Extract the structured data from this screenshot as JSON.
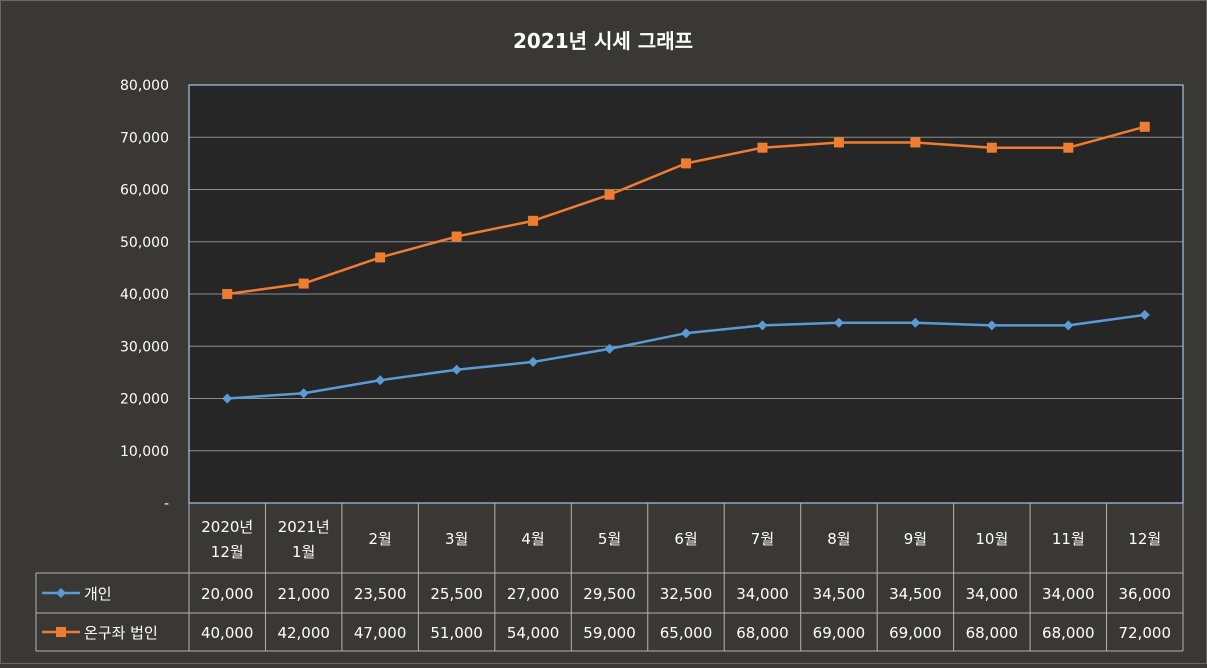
{
  "chart_data": {
    "type": "line",
    "title": "2021년 시세 그래프",
    "categories": [
      [
        "2020년",
        "12월"
      ],
      [
        "2021년",
        "1월"
      ],
      [
        "2월"
      ],
      [
        "3월"
      ],
      [
        "4월"
      ],
      [
        "5월"
      ],
      [
        "6월"
      ],
      [
        "7월"
      ],
      [
        "8월"
      ],
      [
        "9월"
      ],
      [
        "10월"
      ],
      [
        "11월"
      ],
      [
        "12월"
      ]
    ],
    "ylim": [
      0,
      80000
    ],
    "yticks": [
      "-",
      "10,000",
      "20,000",
      "30,000",
      "40,000",
      "50,000",
      "60,000",
      "70,000",
      "80,000"
    ],
    "grid": true,
    "legend": "data table",
    "series": [
      {
        "name": "개인",
        "color": "#5b9bd5",
        "marker": "diamond",
        "values": [
          20000,
          21000,
          23500,
          25500,
          27000,
          29500,
          32500,
          34000,
          34500,
          34500,
          34000,
          34000,
          36000
        ],
        "labels": [
          "20,000",
          "21,000",
          "23,500",
          "25,500",
          "27,000",
          "29,500",
          "32,500",
          "34,000",
          "34,500",
          "34,500",
          "34,000",
          "34,000",
          "36,000"
        ]
      },
      {
        "name": "온구좌 법인",
        "color": "#ed7d31",
        "marker": "square",
        "values": [
          40000,
          42000,
          47000,
          51000,
          54000,
          59000,
          65000,
          68000,
          69000,
          69000,
          68000,
          68000,
          72000
        ],
        "labels": [
          "40,000",
          "42,000",
          "47,000",
          "51,000",
          "54,000",
          "59,000",
          "65,000",
          "68,000",
          "69,000",
          "69,000",
          "68,000",
          "68,000",
          "72,000"
        ]
      }
    ]
  }
}
